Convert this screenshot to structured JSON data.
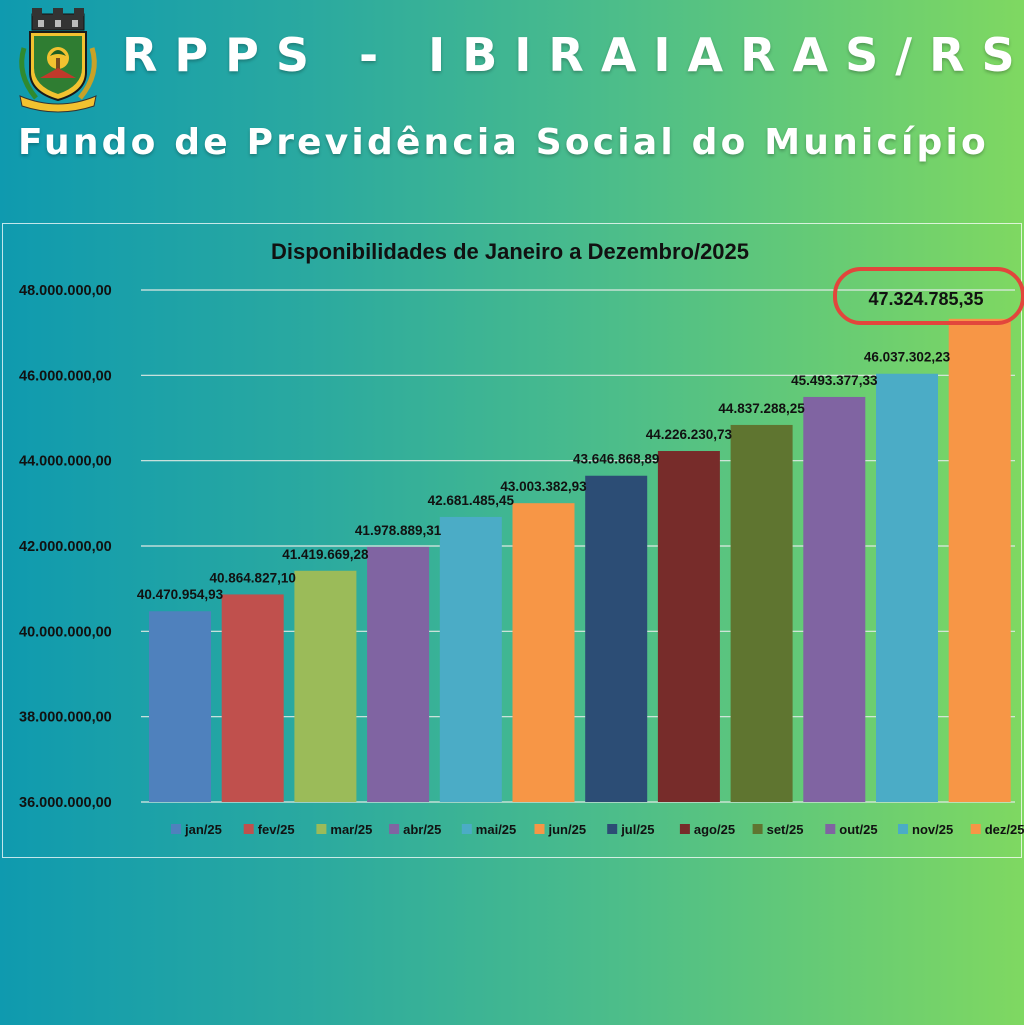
{
  "header": {
    "title": "RPPS - IBIRAIARAS/RS",
    "subtitle": "Fundo de Previdência Social do Município"
  },
  "colors": {
    "grid": "#dfe9e4",
    "text": "#111111",
    "highlight_ring": "#e2463c"
  },
  "chart_data": {
    "type": "bar",
    "title": "Disponibilidades de Janeiro a Dezembro/2025",
    "xlabel": "",
    "ylabel": "",
    "ylim": [
      36000000,
      48000000
    ],
    "yticks": [
      36000000,
      38000000,
      40000000,
      42000000,
      44000000,
      46000000,
      48000000
    ],
    "ytick_labels": [
      "36.000.000,00",
      "38.000.000,00",
      "40.000.000,00",
      "42.000.000,00",
      "44.000.000,00",
      "46.000.000,00",
      "48.000.000,00"
    ],
    "grid": true,
    "legend_position": "bottom",
    "categories": [
      "jan/25",
      "fev/25",
      "mar/25",
      "abr/25",
      "mai/25",
      "jun/25",
      "jul/25",
      "ago/25",
      "set/25",
      "out/25",
      "nov/25",
      "dez/25"
    ],
    "values": [
      40470954.93,
      40864827.1,
      41419669.28,
      41978889.31,
      42681485.45,
      43003382.93,
      43646868.89,
      44226230.73,
      44837288.25,
      45493377.33,
      46037302.23,
      47324785.35
    ],
    "value_labels": [
      "40.470.954,93",
      "40.864.827,10",
      "41.419.669,28",
      "41.978.889,31",
      "42.681.485,45",
      "43.003.382,93",
      "43.646.868,89",
      "44.226.230,73",
      "44.837.288,25",
      "45.493.377,33",
      "46.037.302,23",
      "47.324.785,35"
    ],
    "bar_colors": [
      "#4f81bd",
      "#c0504d",
      "#9bbb59",
      "#8064a2",
      "#4bacc6",
      "#f79646",
      "#2c4d75",
      "#772c2a",
      "#5f7530",
      "#8064a2",
      "#4bacc6",
      "#f79646"
    ],
    "highlighted_index": 11
  }
}
